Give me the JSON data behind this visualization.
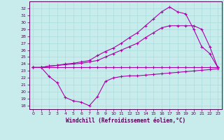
{
  "xlabel": "Windchill (Refroidissement éolien,°C)",
  "background_color": "#c8ecec",
  "grid_color": "#aadddd",
  "line_color": "#aa00aa",
  "xlim": [
    -0.5,
    23.5
  ],
  "ylim": [
    17.5,
    33.0
  ],
  "xticks": [
    0,
    1,
    2,
    3,
    4,
    5,
    6,
    7,
    8,
    9,
    10,
    11,
    12,
    13,
    14,
    15,
    16,
    17,
    18,
    19,
    20,
    21,
    22,
    23
  ],
  "yticks": [
    18,
    19,
    20,
    21,
    22,
    23,
    24,
    25,
    26,
    27,
    28,
    29,
    30,
    31,
    32
  ],
  "series": [
    {
      "x": [
        0,
        1,
        2,
        3,
        4,
        5,
        6,
        7,
        8,
        9,
        10,
        11,
        12,
        13,
        14,
        15,
        16,
        17,
        18,
        19,
        20,
        21,
        22,
        23
      ],
      "y": [
        23.5,
        23.5,
        23.5,
        23.5,
        23.5,
        23.5,
        23.5,
        23.5,
        23.5,
        23.5,
        23.5,
        23.5,
        23.5,
        23.5,
        23.5,
        23.5,
        23.5,
        23.5,
        23.5,
        23.5,
        23.5,
        23.5,
        23.5,
        23.5
      ]
    },
    {
      "x": [
        0,
        1,
        2,
        3,
        4,
        5,
        6,
        7,
        8,
        9,
        10,
        11,
        12,
        13,
        14,
        15,
        16,
        17,
        18,
        19,
        20,
        21,
        22,
        23
      ],
      "y": [
        23.5,
        23.5,
        22.2,
        21.3,
        19.2,
        18.7,
        18.5,
        18.0,
        19.3,
        21.5,
        22.0,
        22.2,
        22.3,
        22.3,
        22.4,
        22.5,
        22.6,
        22.7,
        22.8,
        22.9,
        23.0,
        23.1,
        23.2,
        23.3
      ]
    },
    {
      "x": [
        0,
        1,
        2,
        3,
        4,
        5,
        6,
        7,
        8,
        9,
        10,
        11,
        12,
        13,
        14,
        15,
        16,
        17,
        18,
        19,
        20,
        21,
        22,
        23
      ],
      "y": [
        23.5,
        23.5,
        23.7,
        23.8,
        23.9,
        24.0,
        24.1,
        24.3,
        24.5,
        25.0,
        25.5,
        26.0,
        26.5,
        27.0,
        27.8,
        28.5,
        29.2,
        29.5,
        29.5,
        29.5,
        29.5,
        29.0,
        26.5,
        23.5
      ]
    },
    {
      "x": [
        0,
        1,
        2,
        3,
        4,
        5,
        6,
        7,
        8,
        9,
        10,
        11,
        12,
        13,
        14,
        15,
        16,
        17,
        18,
        19,
        20,
        21,
        22,
        23
      ],
      "y": [
        23.5,
        23.5,
        23.7,
        23.8,
        24.0,
        24.1,
        24.3,
        24.5,
        25.2,
        25.8,
        26.3,
        27.0,
        27.8,
        28.5,
        29.5,
        30.5,
        31.5,
        32.2,
        31.5,
        31.2,
        29.0,
        26.5,
        25.5,
        23.5
      ]
    }
  ]
}
